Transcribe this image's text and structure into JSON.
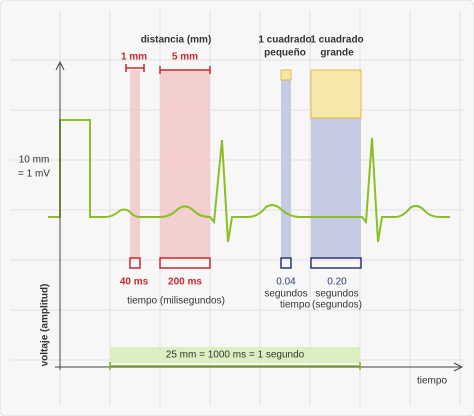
{
  "calibration": {
    "height": "10 mm",
    "voltage": "= 1 mV"
  },
  "axes": {
    "y_label": "voltaje (amplitud)",
    "x_label": "tiempo"
  },
  "distance": {
    "title": "distancia (mm)",
    "small": "1 mm",
    "large": "5 mm",
    "small_time": "40 ms",
    "large_time": "200 ms",
    "time_label": "tiempo (milisegundos)"
  },
  "small_square": {
    "title_1": "1 cuadrado",
    "title_2": "pequeño",
    "time": "0.04",
    "unit": "segundos",
    "label": "tiempo"
  },
  "large_square": {
    "title_1": "1 cuadrado",
    "title_2": "grande",
    "time": "0.20",
    "unit": "segundos",
    "label": "(segundos)"
  },
  "span": {
    "label": "25 mm = 1000 ms = 1 segundo"
  }
}
